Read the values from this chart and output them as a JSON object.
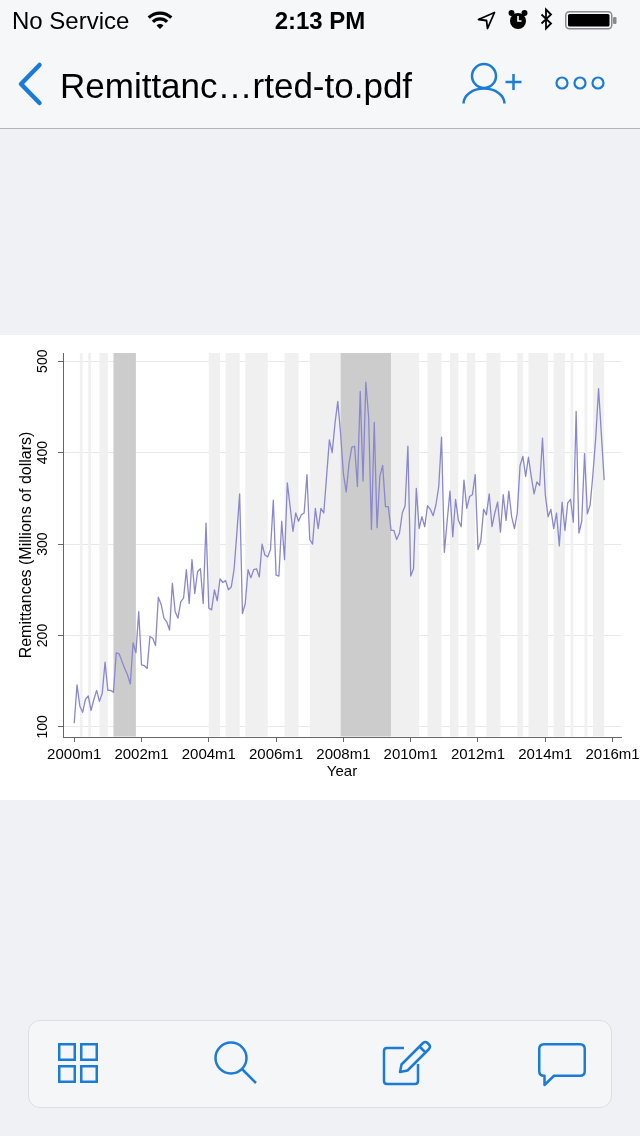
{
  "chart_data": {
    "type": "line",
    "title": "Remittanc…rted-to.pdf",
    "annotations": [
      "No Service",
      "2:13 PM"
    ],
    "xlabel": "Year",
    "ylabel": "Remittances (Millions of dollars)",
    "xlim": [
      "1999-09",
      "2016-04"
    ],
    "ylim": [
      89,
      509
    ],
    "xticks": [
      {
        "value": "2000-01",
        "label": "2000m1"
      },
      {
        "value": "2002-01",
        "label": "2002m1"
      },
      {
        "value": "2004-01",
        "label": "2004m1"
      },
      {
        "value": "2006-01",
        "label": "2006m1"
      },
      {
        "value": "2008-01",
        "label": "2008m1"
      },
      {
        "value": "2010-01",
        "label": "2010m1"
      },
      {
        "value": "2012-01",
        "label": "2012m1"
      },
      {
        "value": "2014-01",
        "label": "2014m1"
      },
      {
        "value": "2016-01",
        "label": "2016m1"
      }
    ],
    "yticks": [
      100,
      200,
      300,
      400,
      500
    ],
    "grid": "y",
    "color": "#8a87cf",
    "bands": [
      {
        "axis": "x",
        "from": "2000-03",
        "to": "2000-04",
        "color": "#f0f0f0"
      },
      {
        "axis": "x",
        "from": "2000-06",
        "to": "2000-07",
        "color": "#f0f0f0"
      },
      {
        "axis": "x",
        "from": "2000-10",
        "to": "2001-01",
        "color": "#f0f0f0"
      },
      {
        "axis": "x",
        "from": "2001-03",
        "to": "2001-11",
        "color": "#cccccc"
      },
      {
        "axis": "x",
        "from": "2004-01",
        "to": "2004-05",
        "color": "#f0f0f0"
      },
      {
        "axis": "x",
        "from": "2004-07",
        "to": "2004-12",
        "color": "#f0f0f0"
      },
      {
        "axis": "x",
        "from": "2005-02",
        "to": "2005-10",
        "color": "#f0f0f0"
      },
      {
        "axis": "x",
        "from": "2006-04",
        "to": "2006-09",
        "color": "#f0f0f0"
      },
      {
        "axis": "x",
        "from": "2007-01",
        "to": "2007-12",
        "color": "#f0f0f0"
      },
      {
        "axis": "x",
        "from": "2007-12",
        "to": "2009-06",
        "color": "#cccccc"
      },
      {
        "axis": "x",
        "from": "2009-06",
        "to": "2010-04",
        "color": "#f0f0f0"
      },
      {
        "axis": "x",
        "from": "2010-07",
        "to": "2010-12",
        "color": "#f0f0f0"
      },
      {
        "axis": "x",
        "from": "2011-03",
        "to": "2011-06",
        "color": "#f0f0f0"
      },
      {
        "axis": "x",
        "from": "2011-09",
        "to": "2011-12",
        "color": "#f0f0f0"
      },
      {
        "axis": "x",
        "from": "2012-04",
        "to": "2012-09",
        "color": "#f0f0f0"
      },
      {
        "axis": "x",
        "from": "2013-03",
        "to": "2013-05",
        "color": "#f0f0f0"
      },
      {
        "axis": "x",
        "from": "2013-07",
        "to": "2014-02",
        "color": "#f0f0f0"
      },
      {
        "axis": "x",
        "from": "2014-04",
        "to": "2014-08",
        "color": "#f0f0f0"
      },
      {
        "axis": "x",
        "from": "2014-10",
        "to": "2014-11",
        "color": "#f0f0f0"
      },
      {
        "axis": "x",
        "from": "2015-03",
        "to": "2015-04",
        "color": "#f0f0f0"
      },
      {
        "axis": "x",
        "from": "2015-06",
        "to": "2015-10",
        "color": "#f0f0f0"
      }
    ],
    "x": [
      "2000-01",
      "2000-02",
      "2000-03",
      "2000-04",
      "2000-05",
      "2000-06",
      "2000-07",
      "2000-08",
      "2000-09",
      "2000-10",
      "2000-11",
      "2000-12",
      "2001-01",
      "2001-02",
      "2001-03",
      "2001-04",
      "2001-05",
      "2001-06",
      "2001-07",
      "2001-08",
      "2001-09",
      "2001-10",
      "2001-11",
      "2001-12",
      "2002-01",
      "2002-02",
      "2002-03",
      "2002-04",
      "2002-05",
      "2002-06",
      "2002-07",
      "2002-08",
      "2002-09",
      "2002-10",
      "2002-11",
      "2002-12",
      "2003-01",
      "2003-02",
      "2003-03",
      "2003-04",
      "2003-05",
      "2003-06",
      "2003-07",
      "2003-08",
      "2003-09",
      "2003-10",
      "2003-11",
      "2003-12",
      "2004-01",
      "2004-02",
      "2004-03",
      "2004-04",
      "2004-05",
      "2004-06",
      "2004-07",
      "2004-08",
      "2004-09",
      "2004-10",
      "2004-11",
      "2004-12",
      "2005-01",
      "2005-02",
      "2005-03",
      "2005-04",
      "2005-05",
      "2005-06",
      "2005-07",
      "2005-08",
      "2005-09",
      "2005-10",
      "2005-11",
      "2005-12",
      "2006-01",
      "2006-02",
      "2006-03",
      "2006-04",
      "2006-05",
      "2006-06",
      "2006-07",
      "2006-08",
      "2006-09",
      "2006-10",
      "2006-11",
      "2006-12",
      "2007-01",
      "2007-02",
      "2007-03",
      "2007-04",
      "2007-05",
      "2007-06",
      "2007-07",
      "2007-08",
      "2007-09",
      "2007-10",
      "2007-11",
      "2007-12",
      "2008-01",
      "2008-02",
      "2008-03",
      "2008-04",
      "2008-05",
      "2008-06",
      "2008-07",
      "2008-08",
      "2008-09",
      "2008-10",
      "2008-11",
      "2008-12",
      "2009-01",
      "2009-02",
      "2009-03",
      "2009-04",
      "2009-05",
      "2009-06",
      "2009-07",
      "2009-08",
      "2009-09",
      "2009-10",
      "2009-11",
      "2009-12",
      "2010-01",
      "2010-02",
      "2010-03",
      "2010-04",
      "2010-05",
      "2010-06",
      "2010-07",
      "2010-08",
      "2010-09",
      "2010-10",
      "2010-11",
      "2010-12",
      "2011-01",
      "2011-02",
      "2011-03",
      "2011-04",
      "2011-05",
      "2011-06",
      "2011-07",
      "2011-08",
      "2011-09",
      "2011-10",
      "2011-11",
      "2011-12",
      "2012-01",
      "2012-02",
      "2012-03",
      "2012-04",
      "2012-05",
      "2012-06",
      "2012-07",
      "2012-08",
      "2012-09",
      "2012-10",
      "2012-11",
      "2012-12",
      "2013-01",
      "2013-02",
      "2013-03",
      "2013-04",
      "2013-05",
      "2013-06",
      "2013-07",
      "2013-08",
      "2013-09",
      "2013-10",
      "2013-11",
      "2013-12",
      "2014-01",
      "2014-02",
      "2014-03",
      "2014-04",
      "2014-05",
      "2014-06",
      "2014-07",
      "2014-08",
      "2014-09",
      "2014-10",
      "2014-11",
      "2014-12",
      "2015-01",
      "2015-02",
      "2015-03",
      "2015-04",
      "2015-05",
      "2015-06",
      "2015-07",
      "2015-08",
      "2015-09",
      "2015-10"
    ],
    "values": [
      104,
      146,
      123,
      116,
      130,
      134,
      118,
      130,
      140,
      128,
      137,
      171,
      140,
      140,
      138,
      181,
      180,
      172,
      164,
      157,
      147,
      192,
      181,
      226,
      168,
      167,
      164,
      199,
      197,
      189,
      242,
      234,
      219,
      215,
      206,
      257,
      226,
      219,
      237,
      241,
      272,
      235,
      283,
      246,
      270,
      273,
      235,
      323,
      230,
      228,
      250,
      238,
      262,
      258,
      260,
      250,
      253,
      272,
      312,
      355,
      224,
      235,
      272,
      263,
      272,
      273,
      264,
      300,
      288,
      286,
      294,
      348,
      266,
      265,
      325,
      283,
      367,
      341,
      314,
      334,
      325,
      332,
      334,
      376,
      305,
      300,
      339,
      317,
      339,
      334,
      374,
      414,
      400,
      432,
      456,
      421,
      377,
      357,
      388,
      406,
      407,
      363,
      467,
      369,
      477,
      439,
      316,
      433,
      318,
      374,
      386,
      341,
      341,
      315,
      315,
      305,
      312,
      334,
      342,
      407,
      265,
      273,
      361,
      317,
      330,
      319,
      342,
      338,
      331,
      343,
      363,
      417,
      291,
      325,
      358,
      308,
      349,
      326,
      319,
      370,
      339,
      352,
      354,
      376,
      294,
      303,
      338,
      332,
      355,
      319,
      334,
      346,
      313,
      354,
      326,
      358,
      330,
      317,
      334,
      386,
      396,
      374,
      395,
      374,
      355,
      368,
      364,
      416,
      354,
      330,
      338,
      317,
      334,
      298,
      346,
      315,
      345,
      349,
      324,
      445,
      312,
      325,
      399,
      333,
      343,
      377,
      417,
      470,
      420,
      370
    ]
  }
}
